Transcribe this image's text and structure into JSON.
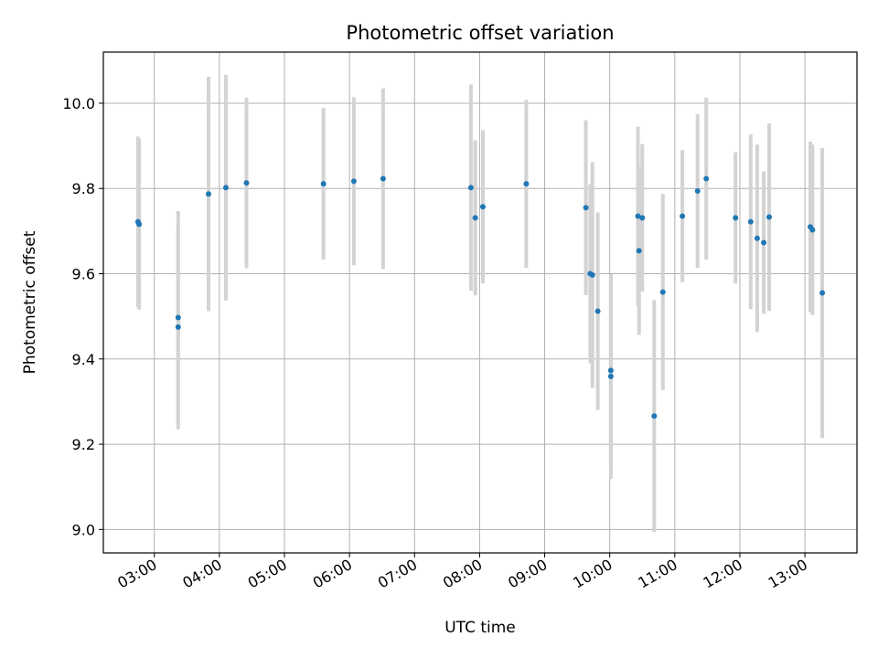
{
  "chart_data": {
    "type": "scatter",
    "title": "Photometric offset variation",
    "xlabel": "UTC time",
    "ylabel": "Photometric offset",
    "xlim": [
      "02:13",
      "13:48"
    ],
    "ylim": [
      8.945,
      10.12
    ],
    "grid": true,
    "legend": "none",
    "colors": {
      "point": "#1f77b4",
      "errorbar": "#d3d3d3",
      "grid": "#b0b0b0",
      "axis": "#000000"
    },
    "x_ticks": [
      "03:00",
      "04:00",
      "05:00",
      "06:00",
      "07:00",
      "08:00",
      "09:00",
      "10:00",
      "11:00",
      "12:00",
      "13:00"
    ],
    "y_ticks": [
      "9.0",
      "9.2",
      "9.4",
      "9.6",
      "9.8",
      "10.0"
    ],
    "points": [
      {
        "time": "02:45",
        "y": 9.722,
        "yerr": 0.2
      },
      {
        "time": "02:46",
        "y": 9.716,
        "yerr": 0.2
      },
      {
        "time": "03:22",
        "y": 9.497,
        "yerr": 0.25
      },
      {
        "time": "03:22",
        "y": 9.475,
        "yerr": 0.24
      },
      {
        "time": "03:50",
        "y": 9.787,
        "yerr": 0.275
      },
      {
        "time": "04:06",
        "y": 9.802,
        "yerr": 0.265
      },
      {
        "time": "04:25",
        "y": 9.813,
        "yerr": 0.2
      },
      {
        "time": "05:36",
        "y": 9.811,
        "yerr": 0.178
      },
      {
        "time": "06:04",
        "y": 9.817,
        "yerr": 0.197
      },
      {
        "time": "06:31",
        "y": 9.823,
        "yerr": 0.212
      },
      {
        "time": "07:52",
        "y": 9.802,
        "yerr": 0.242
      },
      {
        "time": "07:56",
        "y": 9.731,
        "yerr": 0.182
      },
      {
        "time": "08:03",
        "y": 9.757,
        "yerr": 0.18
      },
      {
        "time": "08:43",
        "y": 9.811,
        "yerr": 0.197
      },
      {
        "time": "09:38",
        "y": 9.755,
        "yerr": 0.205
      },
      {
        "time": "09:42",
        "y": 9.6,
        "yerr": 0.21
      },
      {
        "time": "09:44",
        "y": 9.597,
        "yerr": 0.265
      },
      {
        "time": "09:49",
        "y": 9.512,
        "yerr": 0.232
      },
      {
        "time": "10:01",
        "y": 9.373,
        "yerr": 0.222
      },
      {
        "time": "10:01",
        "y": 9.359,
        "yerr": 0.24
      },
      {
        "time": "10:26",
        "y": 9.735,
        "yerr": 0.21
      },
      {
        "time": "10:27",
        "y": 9.654,
        "yerr": 0.198
      },
      {
        "time": "10:30",
        "y": 9.731,
        "yerr": 0.173
      },
      {
        "time": "10:41",
        "y": 9.266,
        "yerr": 0.272
      },
      {
        "time": "10:49",
        "y": 9.557,
        "yerr": 0.23
      },
      {
        "time": "11:07",
        "y": 9.735,
        "yerr": 0.155
      },
      {
        "time": "11:21",
        "y": 9.794,
        "yerr": 0.18
      },
      {
        "time": "11:29",
        "y": 9.823,
        "yerr": 0.19
      },
      {
        "time": "11:56",
        "y": 9.731,
        "yerr": 0.154
      },
      {
        "time": "12:10",
        "y": 9.722,
        "yerr": 0.205
      },
      {
        "time": "12:16",
        "y": 9.683,
        "yerr": 0.22
      },
      {
        "time": "12:22",
        "y": 9.673,
        "yerr": 0.167
      },
      {
        "time": "12:27",
        "y": 9.733,
        "yerr": 0.22
      },
      {
        "time": "13:05",
        "y": 9.71,
        "yerr": 0.2
      },
      {
        "time": "13:07",
        "y": 9.703,
        "yerr": 0.2
      },
      {
        "time": "13:16",
        "y": 9.555,
        "yerr": 0.34
      }
    ]
  }
}
